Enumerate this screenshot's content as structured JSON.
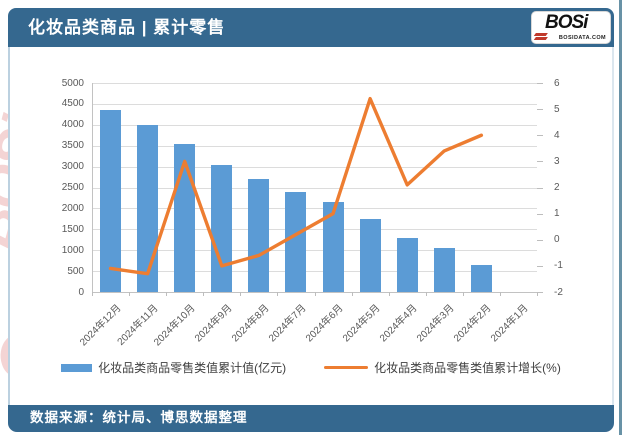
{
  "header": {
    "title": "化妆品类商品 | 累计零售"
  },
  "logo": {
    "text": "BOSi",
    "subtext": "BOSIDATA.COM"
  },
  "chart_data": {
    "type": "combo-bar-line",
    "categories": [
      "2024年12月",
      "2024年11月",
      "2024年10月",
      "2024年9月",
      "2024年8月",
      "2024年7月",
      "2024年6月",
      "2024年5月",
      "2024年4月",
      "2024年3月",
      "2024年2月",
      "2024年1月"
    ],
    "series": [
      {
        "name": "化妆品类商品零售类值累计值(亿元)",
        "type": "bar",
        "axis": "left",
        "color": "#5b9bd5",
        "values": [
          4350,
          4000,
          3550,
          3050,
          2700,
          2400,
          2150,
          1750,
          1300,
          1050,
          650,
          null
        ]
      },
      {
        "name": "化妆品类商品零售类值累计增长(%)",
        "type": "line",
        "axis": "right",
        "color": "#ed7d31",
        "values": [
          -1.1,
          -1.3,
          3.0,
          -1.0,
          -0.6,
          0.2,
          1.0,
          5.4,
          2.1,
          3.4,
          4.0,
          null
        ]
      }
    ],
    "left_axis": {
      "min": 0,
      "max": 5000,
      "step": 500
    },
    "right_axis": {
      "min": -2,
      "max": 6,
      "step": 1
    },
    "grid": true,
    "legend_position": "bottom"
  },
  "footer": {
    "source": "数据来源：统计局、博思数据整理"
  },
  "watermarks": {
    "logo_text": "BOSi",
    "cn_text": "博思数据",
    "en_text": "BosiData Research"
  },
  "colors": {
    "header_bg": "#35688f",
    "bar": "#5b9bd5",
    "line": "#ed7d31"
  }
}
